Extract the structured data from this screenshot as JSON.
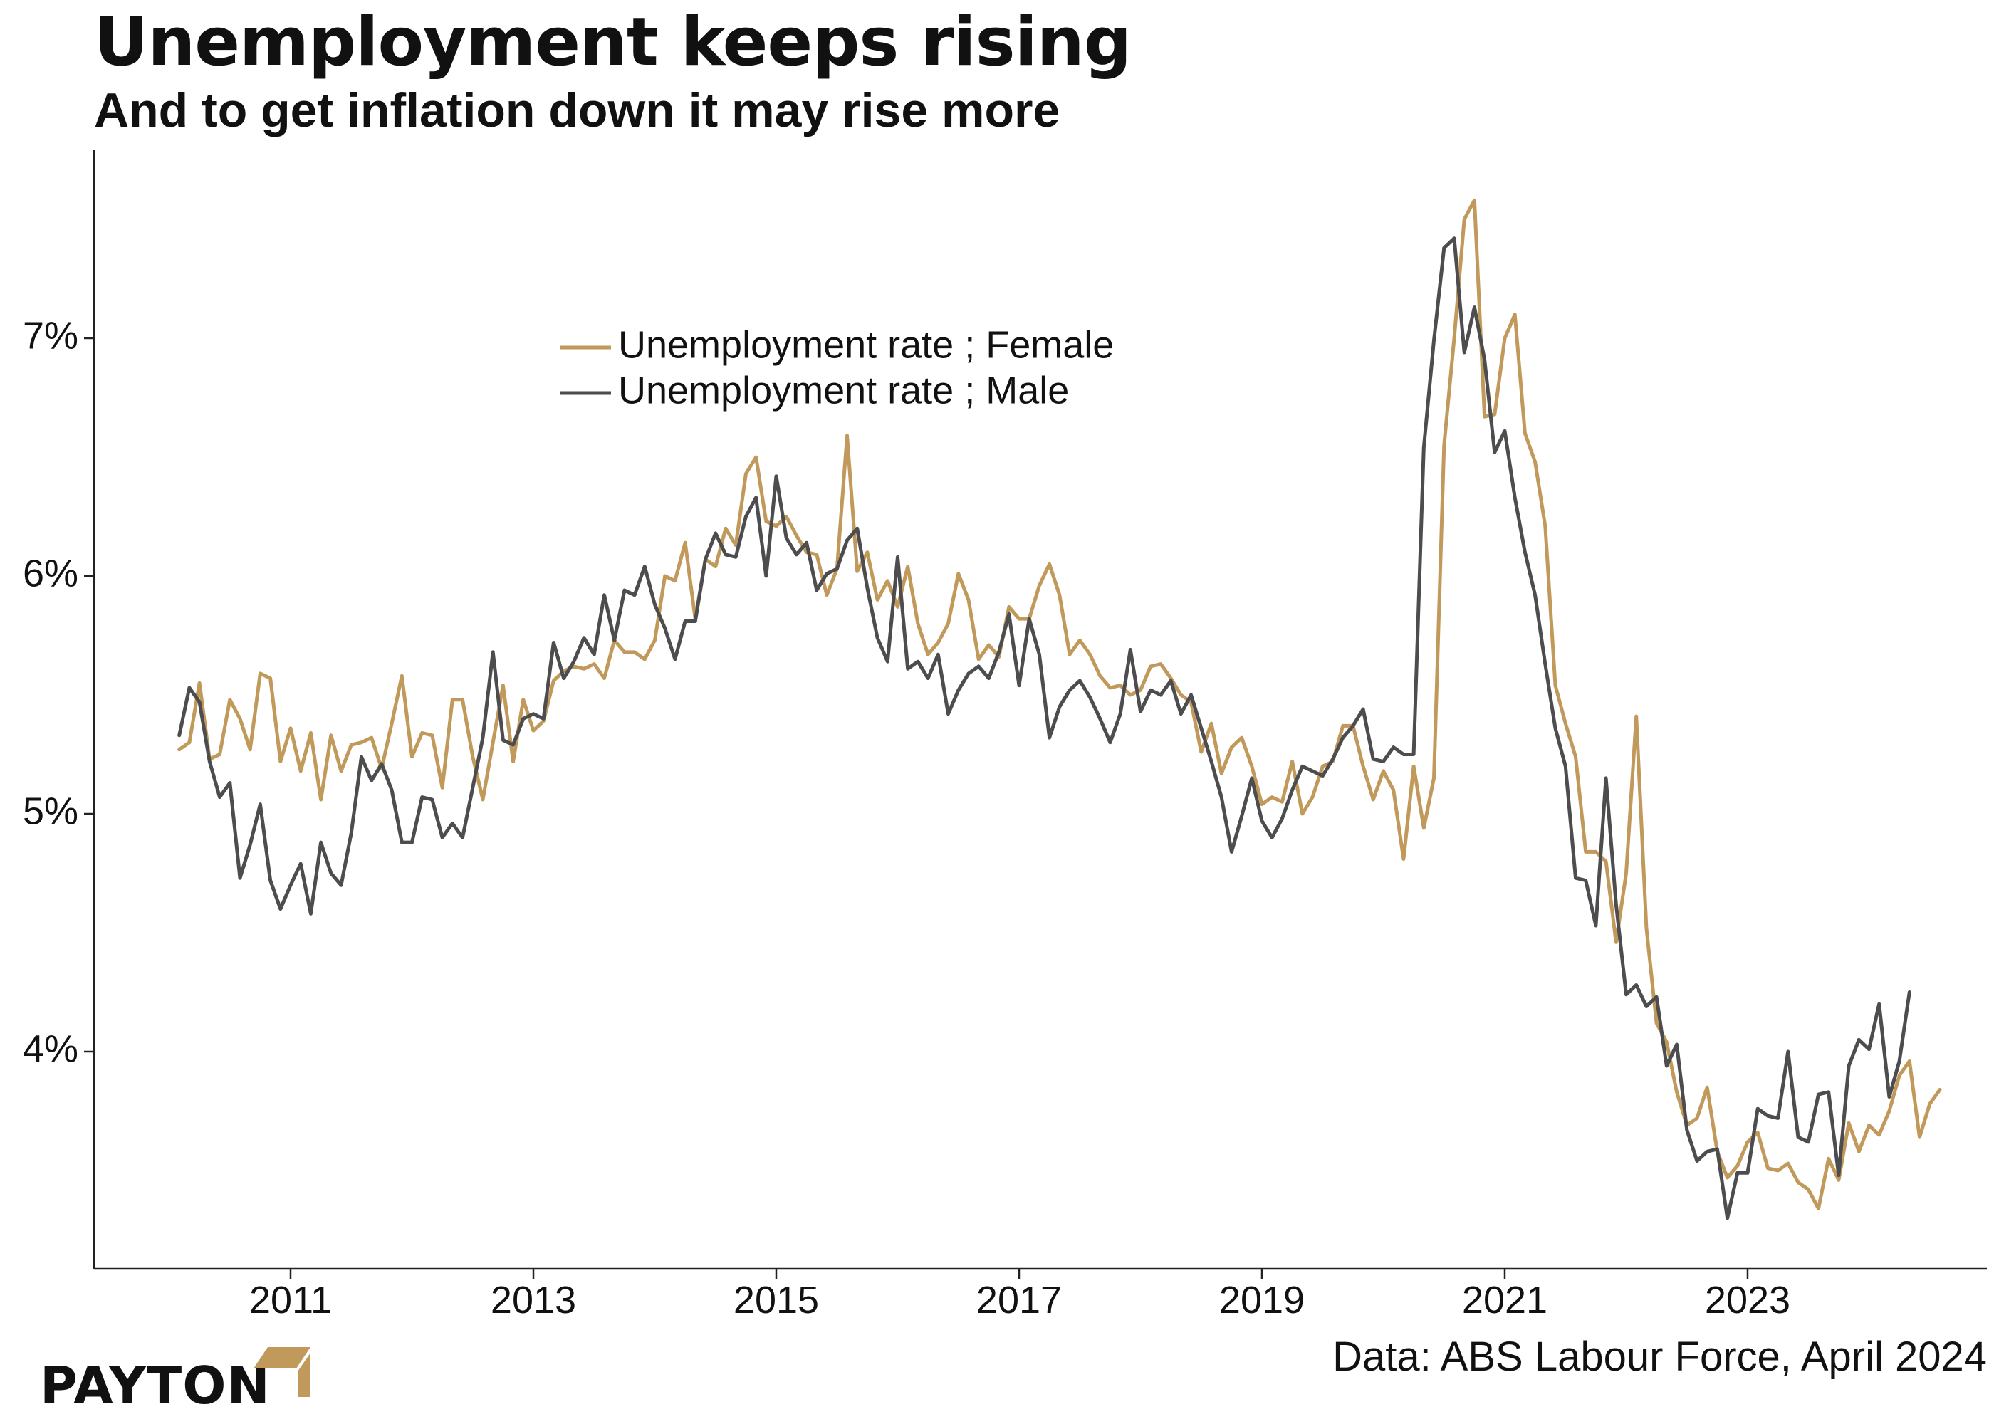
{
  "title": "Unemployment keeps rising",
  "subtitle": "And to get inflation down it may rise more",
  "source": "Data: ABS Labour Force, April 2024",
  "brand": {
    "name": "PAYTON",
    "color": "#c19a5b"
  },
  "colors": {
    "female": "#c19a5b",
    "male": "#4d4d4f",
    "axis": "#222222"
  },
  "chart_data": {
    "type": "line",
    "title": "",
    "xlabel": "",
    "ylabel": "",
    "x_start": "2010-02",
    "x_frequency": "monthly",
    "xlim": [
      2010.0,
      2024.75
    ],
    "ylim": [
      3.1,
      7.8
    ],
    "x_ticks": [
      2011,
      2013,
      2015,
      2017,
      2019,
      2021,
      2023
    ],
    "x_tick_labels": [
      "2011",
      "2013",
      "2015",
      "2017",
      "2019",
      "2021",
      "2023"
    ],
    "y_ticks": [
      4,
      5,
      6,
      7
    ],
    "y_tick_labels": [
      "4%",
      "5%",
      "6%",
      "7%"
    ],
    "grid": false,
    "legend": "top-center",
    "series": [
      {
        "name": "Unemployment rate ; Female",
        "color": "#c19a5b",
        "values": [
          5.27,
          5.3,
          5.55,
          5.23,
          5.25,
          5.48,
          5.4,
          5.27,
          5.59,
          5.57,
          5.22,
          5.36,
          5.18,
          5.34,
          5.06,
          5.33,
          5.18,
          5.29,
          5.3,
          5.32,
          5.19,
          5.38,
          5.58,
          5.24,
          5.34,
          5.33,
          5.11,
          5.48,
          5.48,
          5.24,
          5.06,
          5.3,
          5.54,
          5.22,
          5.48,
          5.35,
          5.39,
          5.56,
          5.6,
          5.62,
          5.61,
          5.63,
          5.57,
          5.73,
          5.68,
          5.68,
          5.65,
          5.73,
          6.0,
          5.98,
          6.14,
          5.82,
          6.07,
          6.04,
          6.2,
          6.13,
          6.43,
          6.5,
          6.23,
          6.21,
          6.25,
          6.17,
          6.1,
          6.09,
          5.92,
          6.03,
          6.59,
          6.02,
          6.1,
          5.9,
          5.98,
          5.87,
          6.04,
          5.8,
          5.67,
          5.72,
          5.8,
          6.01,
          5.9,
          5.65,
          5.71,
          5.66,
          5.87,
          5.82,
          5.82,
          5.96,
          6.05,
          5.92,
          5.67,
          5.73,
          5.67,
          5.58,
          5.53,
          5.54,
          5.5,
          5.52,
          5.62,
          5.63,
          5.57,
          5.5,
          5.47,
          5.26,
          5.38,
          5.17,
          5.28,
          5.32,
          5.2,
          5.04,
          5.07,
          5.05,
          5.22,
          5.0,
          5.07,
          5.2,
          5.22,
          5.37,
          5.37,
          5.2,
          5.06,
          5.18,
          5.1,
          4.81,
          5.2,
          4.94,
          5.15,
          6.55,
          7.0,
          7.5,
          7.58,
          6.67,
          6.68,
          7.0,
          7.1,
          6.6,
          6.48,
          6.21,
          5.54,
          5.38,
          5.24,
          4.84,
          4.84,
          4.8,
          4.46,
          4.75,
          5.41,
          4.52,
          4.12,
          4.04,
          3.83,
          3.69,
          3.72,
          3.85,
          3.58,
          3.47,
          3.52,
          3.62,
          3.66,
          3.51,
          3.5,
          3.53,
          3.45,
          3.42,
          3.34,
          3.55,
          3.46,
          3.7,
          3.58,
          3.69,
          3.65,
          3.75,
          3.9,
          3.96,
          3.64,
          3.78,
          3.84
        ]
      },
      {
        "name": "Unemployment rate ; Male",
        "color": "#4d4d4f",
        "values": [
          5.33,
          5.53,
          5.47,
          5.22,
          5.07,
          5.13,
          4.73,
          4.87,
          5.04,
          4.72,
          4.6,
          4.7,
          4.79,
          4.58,
          4.88,
          4.75,
          4.7,
          4.92,
          5.24,
          5.14,
          5.21,
          5.1,
          4.88,
          4.88,
          5.07,
          5.06,
          4.9,
          4.96,
          4.9,
          5.11,
          5.32,
          5.68,
          5.31,
          5.29,
          5.4,
          5.42,
          5.4,
          5.72,
          5.57,
          5.64,
          5.74,
          5.67,
          5.92,
          5.73,
          5.94,
          5.92,
          6.04,
          5.88,
          5.78,
          5.65,
          5.81,
          5.81,
          6.07,
          6.18,
          6.09,
          6.08,
          6.25,
          6.33,
          6.0,
          6.42,
          6.16,
          6.09,
          6.14,
          5.94,
          6.01,
          6.03,
          6.15,
          6.2,
          5.95,
          5.74,
          5.64,
          6.08,
          5.61,
          5.64,
          5.57,
          5.67,
          5.42,
          5.52,
          5.59,
          5.62,
          5.57,
          5.68,
          5.84,
          5.54,
          5.82,
          5.67,
          5.32,
          5.45,
          5.52,
          5.56,
          5.49,
          5.4,
          5.3,
          5.42,
          5.69,
          5.43,
          5.52,
          5.5,
          5.56,
          5.42,
          5.5,
          5.36,
          5.22,
          5.07,
          4.84,
          4.99,
          5.15,
          4.97,
          4.9,
          4.98,
          5.1,
          5.2,
          5.18,
          5.16,
          5.23,
          5.32,
          5.37,
          5.44,
          5.23,
          5.22,
          5.28,
          5.25,
          5.25,
          6.54,
          6.99,
          7.38,
          7.42,
          6.94,
          7.13,
          6.91,
          6.52,
          6.61,
          6.33,
          6.1,
          5.92,
          5.63,
          5.36,
          5.2,
          4.73,
          4.72,
          4.53,
          5.15,
          4.62,
          4.24,
          4.28,
          4.19,
          4.23,
          3.94,
          4.03,
          3.67,
          3.54,
          3.58,
          3.59,
          3.3,
          3.49,
          3.49,
          3.76,
          3.73,
          3.72,
          4.0,
          3.64,
          3.62,
          3.82,
          3.83,
          3.48,
          3.94,
          4.05,
          4.01,
          4.2,
          3.81,
          3.96,
          4.25
        ]
      }
    ]
  }
}
